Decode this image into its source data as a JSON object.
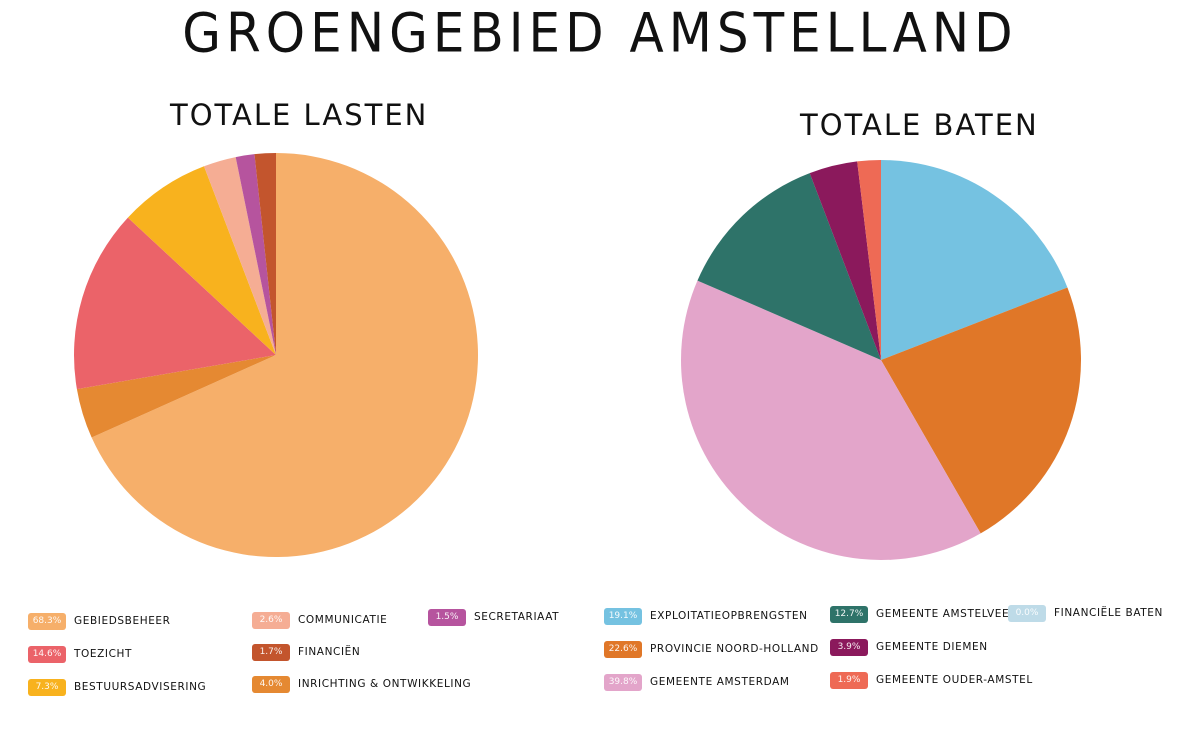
{
  "title": "GROENGEBIED AMSTELLAND",
  "chart_data": [
    {
      "type": "pie",
      "title": "TOTALE LASTEN",
      "slices": [
        {
          "label": "GEBIEDSBEHEER",
          "value": 68.3,
          "display": "68.3%",
          "color": "#F6AF6A"
        },
        {
          "label": "INRICHTING & ONTWIKKELING",
          "value": 4.0,
          "display": "4.0%",
          "color": "#E58932"
        },
        {
          "label": "TOEZICHT",
          "value": 14.6,
          "display": "14.6%",
          "color": "#EB6369"
        },
        {
          "label": "BESTUURSADVISERING",
          "value": 7.3,
          "display": "7.3%",
          "color": "#F8B21E"
        },
        {
          "label": "COMMUNICATIE",
          "value": 2.6,
          "display": "2.6%",
          "color": "#F5AD94"
        },
        {
          "label": "SECRETARIAAT",
          "value": 1.5,
          "display": "1.5%",
          "color": "#B6549E"
        },
        {
          "label": "FINANCIËN",
          "value": 1.7,
          "display": "1.7%",
          "color": "#C3552D"
        }
      ]
    },
    {
      "type": "pie",
      "title": "TOTALE BATEN",
      "slices": [
        {
          "label": "EXPLOITATIEOPBRENGSTEN",
          "value": 19.1,
          "display": "19.1%",
          "color": "#75C2E1"
        },
        {
          "label": "PROVINCIE NOORD-HOLLAND",
          "value": 22.6,
          "display": "22.6%",
          "color": "#E07728"
        },
        {
          "label": "GEMEENTE AMSTERDAM",
          "value": 39.8,
          "display": "39.8%",
          "color": "#E3A5CA"
        },
        {
          "label": "GEMEENTE AMSTELVEEN",
          "value": 12.7,
          "display": "12.7%",
          "color": "#2E7369"
        },
        {
          "label": "GEMEENTE DIEMEN",
          "value": 3.9,
          "display": "3.9%",
          "color": "#8B195C"
        },
        {
          "label": "GEMEENTE OUDER-AMSTEL",
          "value": 1.9,
          "display": "1.9%",
          "color": "#EE6A55"
        },
        {
          "label": "FINANCIËLE BATEN",
          "value": 0.0,
          "display": "0.0%",
          "color": "#BEDBE8"
        }
      ]
    }
  ]
}
